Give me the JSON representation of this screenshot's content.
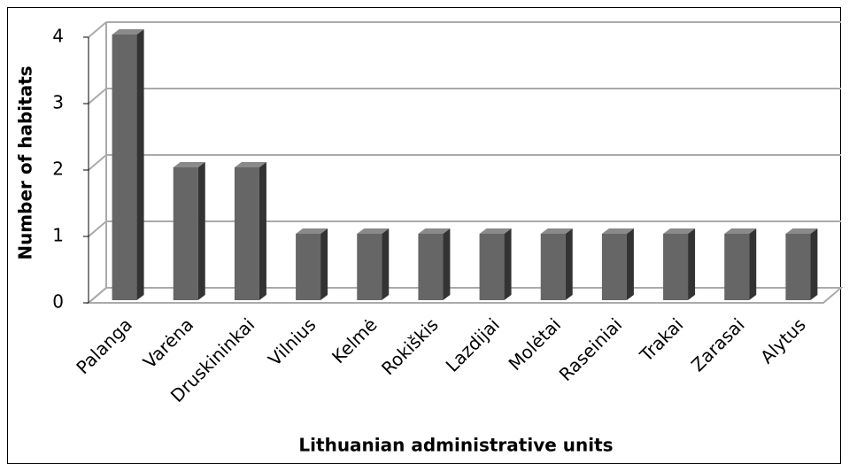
{
  "chart_data": {
    "type": "bar3d",
    "categories": [
      "Palanga",
      "Varėna",
      "Druskininkai",
      "Vilnius",
      "Kelmė",
      "Rokiškis",
      "Lazdijai",
      "Molėtai",
      "Raseiniai",
      "Trakai",
      "Zarasai",
      "Alytus"
    ],
    "values": [
      4,
      2,
      2,
      1,
      1,
      1,
      1,
      1,
      1,
      1,
      1,
      1
    ],
    "color": "#666666",
    "ylim": [
      0,
      4
    ],
    "yticks": [
      0,
      1,
      2,
      3,
      4
    ],
    "grid": true,
    "xlabel": "Lithuanian administrative units",
    "ylabel": "Number of habitats"
  }
}
